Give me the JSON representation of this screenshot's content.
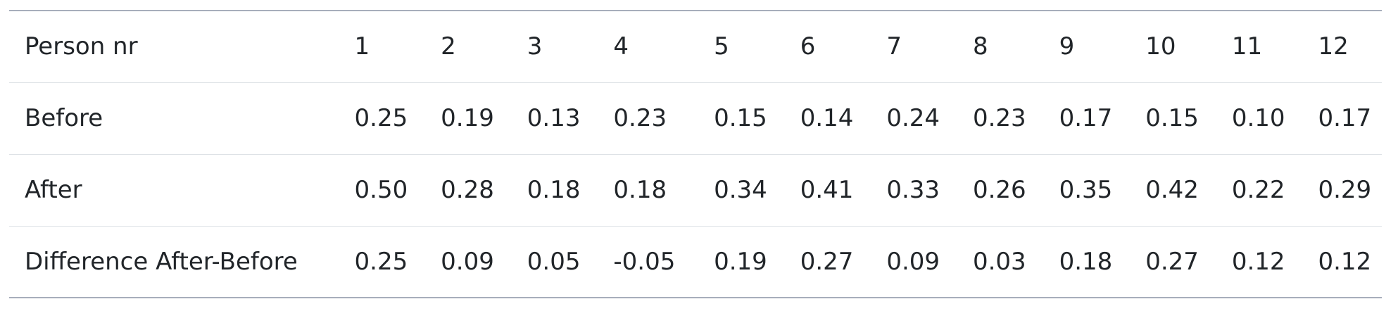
{
  "table": {
    "header": {
      "label": "Person nr",
      "cells": [
        "1",
        "2",
        "3",
        "4",
        "5",
        "6",
        "7",
        "8",
        "9",
        "10",
        "11",
        "12"
      ]
    },
    "rows": [
      {
        "label": "Before",
        "cells": [
          "0.25",
          "0.19",
          "0.13",
          "0.23",
          "0.15",
          "0.14",
          "0.24",
          "0.23",
          "0.17",
          "0.15",
          "0.10",
          "0.17"
        ]
      },
      {
        "label": "After",
        "cells": [
          "0.50",
          "0.28",
          "0.18",
          "0.18",
          "0.34",
          "0.41",
          "0.33",
          "0.26",
          "0.35",
          "0.42",
          "0.22",
          "0.29"
        ]
      },
      {
        "label": "Difference After-Before",
        "cells": [
          "0.25",
          "0.09",
          "0.05",
          "-0.05",
          "0.19",
          "0.27",
          "0.09",
          "0.03",
          "0.18",
          "0.27",
          "0.12",
          "0.12"
        ]
      }
    ]
  }
}
